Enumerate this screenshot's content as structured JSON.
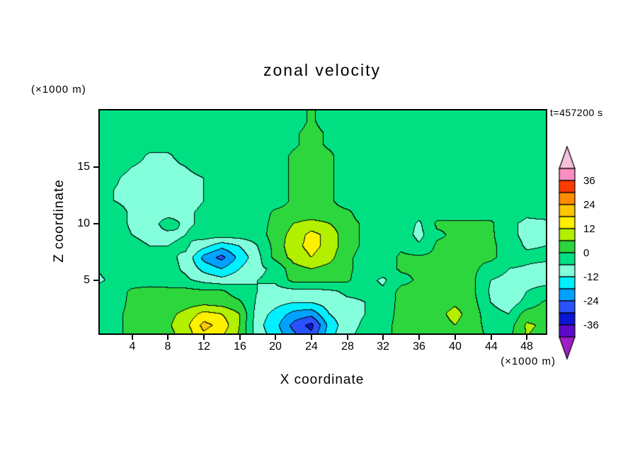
{
  "title": "zonal velocity",
  "timestamp": "t=457200 s",
  "axes": {
    "x_label": "X coordinate",
    "x_unit": "(×1000 m)",
    "y_label": "Z coordinate",
    "y_unit": "(×1000 m)",
    "x_ticks": [
      4,
      8,
      12,
      16,
      20,
      24,
      28,
      32,
      36,
      40,
      44,
      48
    ],
    "y_ticks": [
      5,
      10,
      15
    ]
  },
  "colorbar": {
    "labels": [
      36,
      24,
      12,
      0,
      -12,
      -24,
      -36
    ]
  },
  "chart_data": {
    "type": "heatmap",
    "title": "zonal velocity",
    "xlabel": "X coordinate (×1000 m)",
    "ylabel": "Z coordinate (×1000 m)",
    "time_label": "t=457200 s",
    "x_range": [
      0.4,
      50.1
    ],
    "z_range": [
      0.3,
      20
    ],
    "grid_x": {
      "start": 0,
      "step": 2,
      "count": 26
    },
    "grid_z": {
      "start": 20,
      "step": -1,
      "count": 21
    },
    "levels": [
      -42,
      -36,
      -30,
      -24,
      -18,
      -12,
      -6,
      0,
      6,
      12,
      18,
      24,
      30,
      36,
      42
    ],
    "palette": [
      "#5c0ac8",
      "#0b16d4",
      "#2a52ff",
      "#00a2ff",
      "#00f0ff",
      "#84ffdc",
      "#00e083",
      "#2cd63c",
      "#b2f000",
      "#fff000",
      "#ffc800",
      "#ff8c00",
      "#ff3c00",
      "#fa8ec2"
    ],
    "arrow_colors": {
      "top": "#f6c0da",
      "bottom": "#a01ec8"
    },
    "contour_line_color": "#000000",
    "values": [
      [
        -3,
        -3,
        -3,
        -3,
        -3,
        -3,
        -3,
        -3,
        -3,
        -3,
        -3,
        -3,
        1,
        -3,
        -3,
        -3,
        -3,
        -3,
        -3,
        -3,
        -3,
        -3,
        -3,
        -3,
        -3,
        -3
      ],
      [
        -3,
        -3,
        -3,
        -3,
        -3,
        -3,
        -3,
        -3,
        -3,
        -3,
        -3,
        -3,
        1,
        -3,
        -3,
        -3,
        -3,
        -3,
        -3,
        -3,
        -3,
        -3,
        -3,
        -3,
        -3,
        -3
      ],
      [
        -3,
        -3,
        -3,
        -3,
        -3,
        -3,
        -3,
        -3,
        -3,
        -3,
        -3,
        -1,
        2,
        -1,
        -3,
        -3,
        -3,
        -3,
        -3,
        -3,
        -3,
        -3,
        -3,
        -3,
        -3,
        -3
      ],
      [
        -3,
        -3,
        -3,
        -3,
        -3,
        -3,
        -3,
        -3,
        -3,
        -3,
        -3,
        -1,
        2,
        -1,
        -3,
        -3,
        -3,
        -3,
        -3,
        -3,
        -3,
        -3,
        -3,
        -3,
        -3,
        -3
      ],
      [
        -3,
        -3,
        -3,
        -7,
        -7,
        -3,
        -3,
        -3,
        -3,
        -3,
        -3,
        1,
        2,
        1,
        -3,
        -3,
        -3,
        -3,
        -3,
        -3,
        -3,
        -3,
        -3,
        -3,
        -3,
        -3
      ],
      [
        -3,
        -3,
        -6,
        -8,
        -8,
        -6,
        -3,
        -3,
        -3,
        -3,
        -3,
        1,
        2,
        1,
        -3,
        -3,
        -3,
        -3,
        -3,
        -3,
        -3,
        -3,
        -3,
        -3,
        -3,
        -3
      ],
      [
        -3,
        -5,
        -8,
        -9,
        -9,
        -8,
        -6,
        -3,
        -3,
        -3,
        -3,
        1,
        2,
        1,
        -3,
        -3,
        -3,
        -3,
        -3,
        -3,
        -3,
        -3,
        -3,
        -3,
        -3,
        -3
      ],
      [
        -3,
        -6,
        -8,
        -9,
        -9,
        -8,
        -6,
        -3,
        -3,
        -3,
        -3,
        1,
        2,
        1,
        -3,
        -3,
        -3,
        -3,
        -3,
        -3,
        -3,
        -3,
        -3,
        -3,
        -3,
        -3
      ],
      [
        -3,
        -6,
        -8,
        -9,
        -9,
        -8,
        -6,
        -4,
        -3,
        -3,
        -3,
        1,
        3,
        1,
        -3,
        -3,
        -3,
        -3,
        -3,
        -3,
        -3,
        -3,
        -3,
        -3,
        -3,
        -3
      ],
      [
        -3,
        -3,
        -7,
        -8,
        -8,
        -7,
        -5,
        -3,
        -3,
        -3,
        1,
        2,
        2,
        2,
        1,
        -3,
        -3,
        -3,
        -3,
        -3,
        -3,
        -3,
        -3,
        -3,
        -5,
        -4
      ],
      [
        -3,
        -3,
        -7,
        -8,
        -4,
        -7,
        -5,
        -3,
        -3,
        -3,
        2,
        6,
        8,
        6,
        2,
        -1,
        -3,
        -2,
        -7,
        1,
        1,
        1,
        1,
        -5,
        -7,
        -7
      ],
      [
        -3,
        -3,
        -6,
        -7,
        -7,
        -6,
        -3,
        -3,
        -3,
        -3,
        3,
        8,
        14,
        10,
        2,
        -1,
        -3,
        -2,
        -8,
        -1,
        1,
        1,
        1,
        -4,
        -8,
        -7
      ],
      [
        -3,
        -3,
        -5,
        -6,
        -6,
        -5,
        -10,
        -16,
        -12,
        -6,
        2,
        10,
        14,
        10,
        2,
        -1,
        -3,
        -1,
        -5,
        1,
        1,
        1,
        1,
        -2,
        -7,
        -6
      ],
      [
        -6,
        -4,
        -4,
        -5,
        -5,
        -7,
        -20,
        -26,
        -16,
        -8,
        2,
        8,
        12,
        8,
        1,
        -2,
        -3,
        1,
        1,
        1,
        1,
        1,
        1,
        -2,
        -4,
        -4
      ],
      [
        -6,
        -4,
        -3,
        -4,
        -4,
        -7,
        -14,
        -18,
        -12,
        -7,
        -5,
        4,
        6,
        4,
        1,
        -2,
        -3,
        1,
        1,
        1,
        1,
        1,
        -2,
        -6,
        -7,
        -9
      ],
      [
        -7,
        -5,
        -3,
        -3,
        -4,
        -5,
        -8,
        -10,
        -8,
        -6,
        -5,
        2,
        2,
        2,
        1,
        -4,
        -7,
        -2,
        1,
        1,
        1,
        1,
        -6,
        -8,
        -7,
        -7
      ],
      [
        -5,
        -3,
        1,
        2,
        2,
        2,
        1,
        1,
        -3,
        -6,
        -8,
        -8,
        -8,
        -7,
        -5,
        -5,
        -5,
        2,
        2,
        2,
        2,
        1,
        -7,
        -12,
        -6,
        -5
      ],
      [
        -5,
        -2,
        1,
        2,
        2,
        3,
        4,
        3,
        1,
        -7,
        -10,
        -12,
        -12,
        -9,
        -7,
        -6,
        -4,
        2,
        3,
        3,
        5,
        2,
        -6,
        -9,
        -4,
        1
      ],
      [
        -2,
        -1,
        1,
        2,
        4,
        8,
        14,
        12,
        6,
        -9,
        -14,
        -20,
        -22,
        -12,
        -8,
        -6,
        -3,
        2,
        3,
        4,
        8,
        3,
        -4,
        -6,
        3,
        3
      ],
      [
        -2,
        -1,
        1,
        2,
        5,
        10,
        20,
        16,
        6,
        -10,
        -16,
        -26,
        -32,
        -16,
        -8,
        -5,
        -2,
        2,
        3,
        3,
        6,
        2,
        -2,
        -3,
        7,
        5
      ],
      [
        -2,
        -1,
        1,
        2,
        4,
        8,
        16,
        12,
        5,
        -9,
        -14,
        -22,
        -28,
        -14,
        -7,
        -4,
        -2,
        2,
        2,
        3,
        5,
        2,
        -1,
        -1,
        6,
        4
      ]
    ]
  }
}
